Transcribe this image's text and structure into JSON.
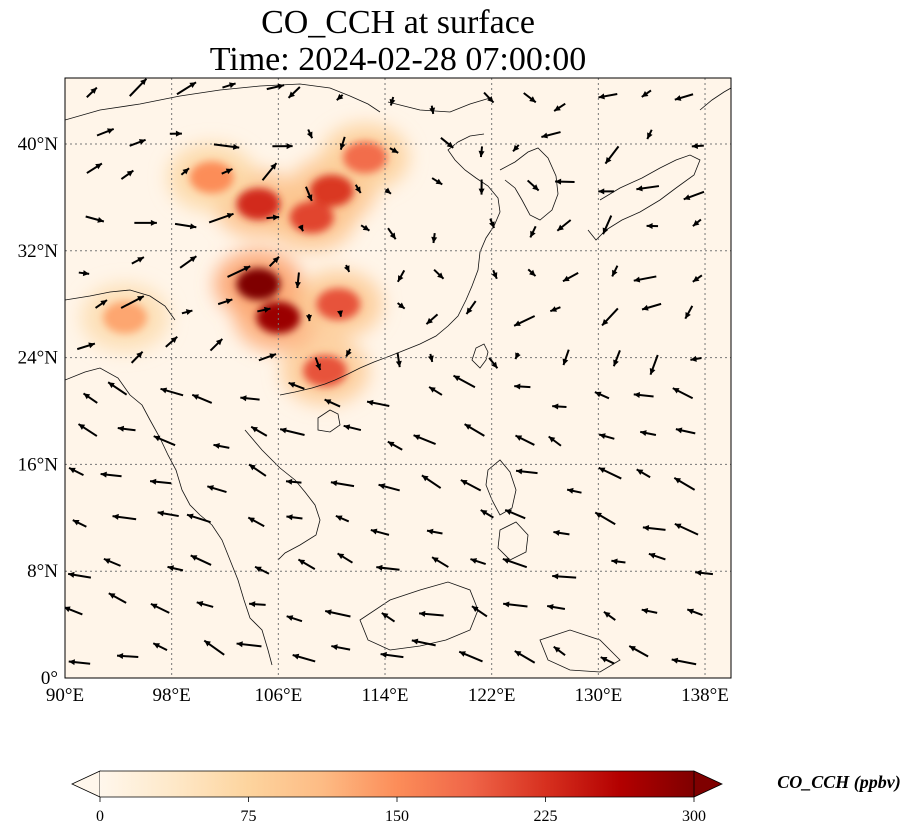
{
  "chart_data": {
    "type": "heatmap",
    "title": "CO_CCH at surface",
    "subtitle": "Time: 2024-02-28 07:00:00",
    "x_ticks": [
      "90°E",
      "98°E",
      "106°E",
      "114°E",
      "122°E",
      "130°E",
      "138°E"
    ],
    "y_ticks": [
      "0°",
      "8°N",
      "16°N",
      "24°N",
      "32°N",
      "40°N"
    ],
    "x_tick_values": [
      90,
      98,
      106,
      114,
      122,
      130,
      138
    ],
    "y_tick_values": [
      0,
      8,
      16,
      24,
      32,
      40
    ],
    "xlim": [
      90,
      140
    ],
    "ylim": [
      0,
      45
    ],
    "grid": true,
    "colorbar": {
      "label": "CO_CCH (ppbv)",
      "ticks": [
        "0",
        "75",
        "150",
        "225",
        "300"
      ],
      "tick_values": [
        0,
        75,
        150,
        225,
        300
      ],
      "range": [
        0,
        300
      ],
      "extend": "both",
      "colors": [
        "#fff7ec",
        "#fee8c8",
        "#fdd49e",
        "#fdbb84",
        "#fc8d59",
        "#ef6548",
        "#d7301f",
        "#b30000",
        "#7f0000"
      ]
    },
    "hotspots": [
      {
        "lon": 104.5,
        "lat": 29.5,
        "value": 300
      },
      {
        "lon": 106.0,
        "lat": 27.0,
        "value": 280
      },
      {
        "lon": 110.5,
        "lat": 28.0,
        "value": 200
      },
      {
        "lon": 104.5,
        "lat": 35.5,
        "value": 230
      },
      {
        "lon": 110.0,
        "lat": 36.5,
        "value": 220
      },
      {
        "lon": 112.5,
        "lat": 39.0,
        "value": 180
      },
      {
        "lon": 108.5,
        "lat": 34.5,
        "value": 210
      },
      {
        "lon": 94.5,
        "lat": 27.0,
        "value": 130
      },
      {
        "lon": 109.5,
        "lat": 23.0,
        "value": 200
      },
      {
        "lon": 101.0,
        "lat": 37.5,
        "value": 150
      }
    ]
  }
}
